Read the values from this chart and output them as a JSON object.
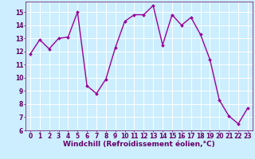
{
  "x": [
    0,
    1,
    2,
    3,
    4,
    5,
    6,
    7,
    8,
    9,
    10,
    11,
    12,
    13,
    14,
    15,
    16,
    17,
    18,
    19,
    20,
    21,
    22,
    23
  ],
  "y": [
    11.8,
    12.9,
    12.2,
    13.0,
    13.1,
    15.0,
    9.4,
    8.8,
    9.9,
    12.3,
    14.3,
    14.8,
    14.8,
    15.5,
    12.5,
    14.8,
    14.0,
    14.6,
    13.3,
    11.4,
    8.3,
    7.1,
    6.5,
    7.7
  ],
  "line_color": "#990099",
  "marker": "D",
  "marker_size": 2.0,
  "linewidth": 1.0,
  "xlabel": "Windchill (Refroidissement éolien,°C)",
  "xlabel_fontsize": 6.5,
  "ylim": [
    6,
    15.8
  ],
  "xlim": [
    -0.5,
    23.5
  ],
  "yticks": [
    6,
    7,
    8,
    9,
    10,
    11,
    12,
    13,
    14,
    15
  ],
  "xticks": [
    0,
    1,
    2,
    3,
    4,
    5,
    6,
    7,
    8,
    9,
    10,
    11,
    12,
    13,
    14,
    15,
    16,
    17,
    18,
    19,
    20,
    21,
    22,
    23
  ],
  "tick_fontsize": 5.5,
  "bg_color": "#cceeff",
  "grid_color": "#ffffff",
  "label_color": "#660066"
}
